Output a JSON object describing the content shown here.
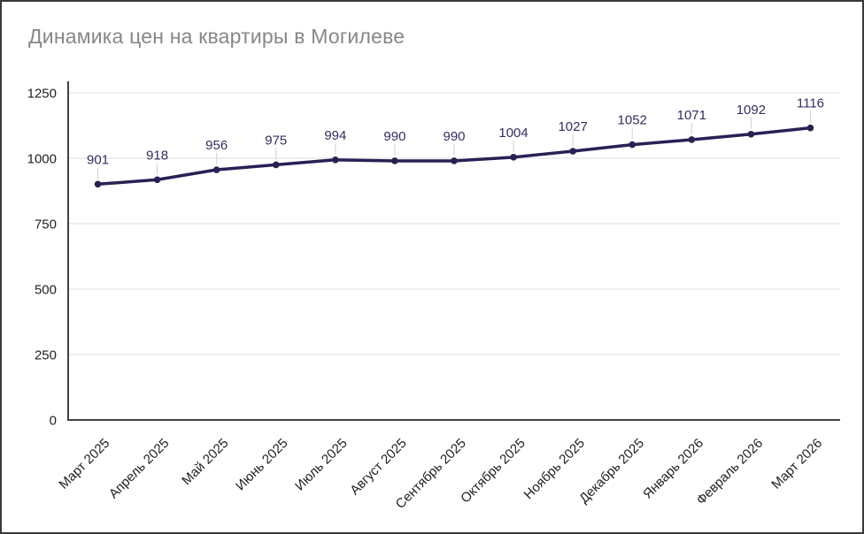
{
  "chart_data": {
    "type": "line",
    "title": "Динамика цен на квартиры в Могилеве",
    "categories": [
      "Март 2025",
      "Апрель 2025",
      "Май 2025",
      "Июнь 2025",
      "Июль 2025",
      "Август 2025",
      "Сентябрь 2025",
      "Октябрь 2025",
      "Ноябрь 2025",
      "Декабрь 2025",
      "Январь 2026",
      "Февраль 2026",
      "Март 2026"
    ],
    "values": [
      901,
      918,
      956,
      975,
      994,
      990,
      990,
      1004,
      1027,
      1052,
      1071,
      1092,
      1116
    ],
    "xlabel": "",
    "ylabel": "",
    "ylim": [
      0,
      1250
    ],
    "yticks": [
      0,
      250,
      500,
      750,
      1000,
      1250
    ],
    "grid": true,
    "legend": "none",
    "x_label_rotation": -45,
    "data_labels_visible": true,
    "colors": {
      "line": "#272254",
      "marker": "#272254",
      "data_label": "#322e63",
      "grid": "#e3e3e3",
      "axis": "#424242",
      "tick_label": "#1f1f1f",
      "title": "#878787",
      "leader": "#cfcfcf",
      "background": "#ffffff",
      "frame_border": "#3a3a3a"
    }
  }
}
